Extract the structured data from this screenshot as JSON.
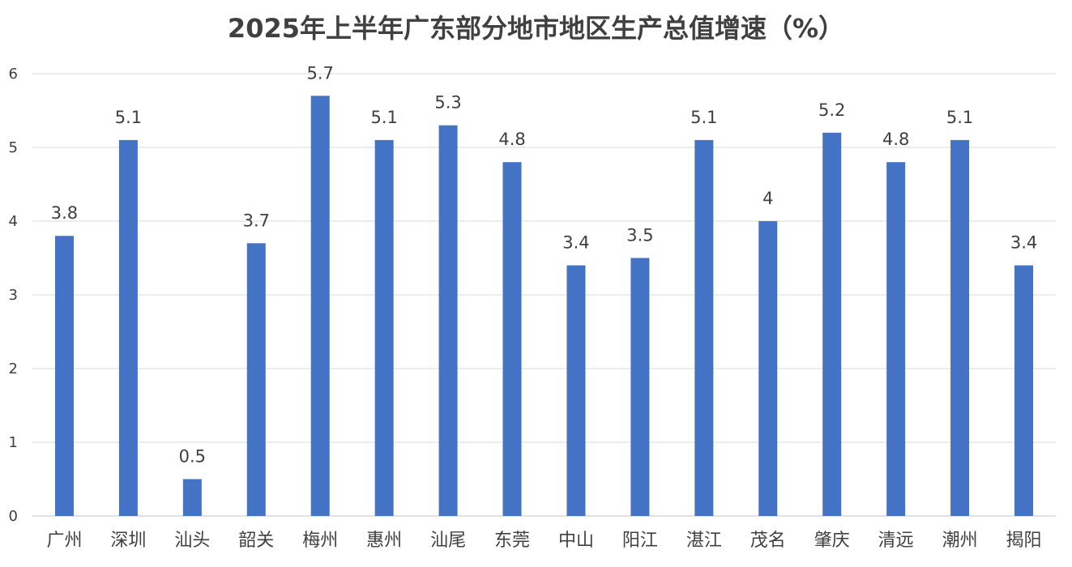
{
  "chart_data": {
    "type": "bar",
    "title": "2025年上半年广东部分地市地区生产总值增速（%）",
    "xlabel": "",
    "ylabel": "",
    "categories": [
      "广州",
      "深圳",
      "汕头",
      "韶关",
      "梅州",
      "惠州",
      "汕尾",
      "东莞",
      "中山",
      "阳江",
      "湛江",
      "茂名",
      "肇庆",
      "清远",
      "潮州",
      "揭阳"
    ],
    "values": [
      3.8,
      5.1,
      0.5,
      3.7,
      5.7,
      5.1,
      5.3,
      4.8,
      3.4,
      3.5,
      5.1,
      4,
      5.2,
      4.8,
      5.1,
      3.4
    ],
    "data_labels": [
      "3.8",
      "5.1",
      "0.5",
      "3.7",
      "5.7",
      "5.1",
      "5.3",
      "4.8",
      "3.4",
      "3.5",
      "5.1",
      "4",
      "5.2",
      "4.8",
      "5.1",
      "3.4"
    ],
    "ylim": [
      0,
      6
    ],
    "yticks": [
      "0",
      "1",
      "2",
      "3",
      "4",
      "5",
      "6"
    ],
    "grid": true,
    "legend": "none",
    "bar_color": "#4472c4"
  }
}
